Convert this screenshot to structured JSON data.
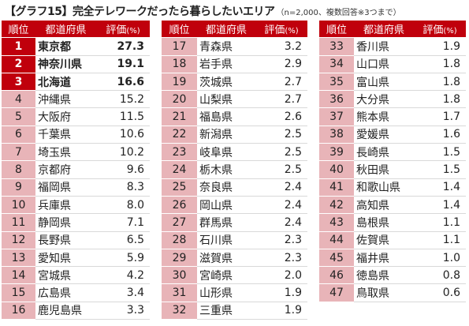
{
  "title": "【グラフ15】完全テレワークだったら暮らしたいエリア",
  "note": "（n=2,000、複数回答※3つまで）",
  "headers": {
    "rank": "順位",
    "prefecture": "都道府県",
    "score": "評価",
    "unit": "(%)"
  },
  "chart_data": {
    "type": "table",
    "title": "【グラフ15】完全テレワークだったら暮らしたいエリア",
    "subtitle": "（n=2,000、複数回答※3つまで）",
    "columns": [
      "順位",
      "都道府県",
      "評価(%)"
    ],
    "rows": [
      {
        "rank": "1",
        "pref": "東京都",
        "value": "27.3",
        "highlight": true
      },
      {
        "rank": "2",
        "pref": "神奈川県",
        "value": "19.1",
        "highlight": true
      },
      {
        "rank": "3",
        "pref": "北海道",
        "value": "16.6",
        "highlight": true
      },
      {
        "rank": "4",
        "pref": "沖縄県",
        "value": "15.2"
      },
      {
        "rank": "5",
        "pref": "大阪府",
        "value": "11.5"
      },
      {
        "rank": "6",
        "pref": "千葉県",
        "value": "10.6"
      },
      {
        "rank": "7",
        "pref": "埼玉県",
        "value": "10.2"
      },
      {
        "rank": "8",
        "pref": "京都府",
        "value": "9.6"
      },
      {
        "rank": "9",
        "pref": "福岡県",
        "value": "8.3"
      },
      {
        "rank": "10",
        "pref": "兵庫県",
        "value": "8.0"
      },
      {
        "rank": "11",
        "pref": "静岡県",
        "value": "7.1"
      },
      {
        "rank": "12",
        "pref": "長野県",
        "value": "6.5"
      },
      {
        "rank": "13",
        "pref": "愛知県",
        "value": "5.9"
      },
      {
        "rank": "14",
        "pref": "宮城県",
        "value": "4.2"
      },
      {
        "rank": "15",
        "pref": "広島県",
        "value": "3.4"
      },
      {
        "rank": "16",
        "pref": "鹿児島県",
        "value": "3.3"
      },
      {
        "rank": "17",
        "pref": "青森県",
        "value": "3.2"
      },
      {
        "rank": "18",
        "pref": "岩手県",
        "value": "2.9"
      },
      {
        "rank": "19",
        "pref": "茨城県",
        "value": "2.7"
      },
      {
        "rank": "20",
        "pref": "山梨県",
        "value": "2.7"
      },
      {
        "rank": "21",
        "pref": "福島県",
        "value": "2.6"
      },
      {
        "rank": "22",
        "pref": "新潟県",
        "value": "2.5"
      },
      {
        "rank": "23",
        "pref": "岐阜県",
        "value": "2.5"
      },
      {
        "rank": "24",
        "pref": "栃木県",
        "value": "2.5"
      },
      {
        "rank": "25",
        "pref": "奈良県",
        "value": "2.4"
      },
      {
        "rank": "26",
        "pref": "岡山県",
        "value": "2.4"
      },
      {
        "rank": "27",
        "pref": "群馬県",
        "value": "2.4"
      },
      {
        "rank": "28",
        "pref": "石川県",
        "value": "2.3"
      },
      {
        "rank": "29",
        "pref": "滋賀県",
        "value": "2.3"
      },
      {
        "rank": "30",
        "pref": "宮崎県",
        "value": "2.0"
      },
      {
        "rank": "31",
        "pref": "山形県",
        "value": "1.9"
      },
      {
        "rank": "32",
        "pref": "三重県",
        "value": "1.9"
      },
      {
        "rank": "33",
        "pref": "香川県",
        "value": "1.9"
      },
      {
        "rank": "34",
        "pref": "山口県",
        "value": "1.8"
      },
      {
        "rank": "35",
        "pref": "富山県",
        "value": "1.8"
      },
      {
        "rank": "36",
        "pref": "大分県",
        "value": "1.8"
      },
      {
        "rank": "37",
        "pref": "熊本県",
        "value": "1.7"
      },
      {
        "rank": "38",
        "pref": "愛媛県",
        "value": "1.6"
      },
      {
        "rank": "39",
        "pref": "長崎県",
        "value": "1.5"
      },
      {
        "rank": "40",
        "pref": "秋田県",
        "value": "1.5"
      },
      {
        "rank": "41",
        "pref": "和歌山県",
        "value": "1.4"
      },
      {
        "rank": "42",
        "pref": "高知県",
        "value": "1.4"
      },
      {
        "rank": "43",
        "pref": "島根県",
        "value": "1.1"
      },
      {
        "rank": "44",
        "pref": "佐賀県",
        "value": "1.1"
      },
      {
        "rank": "45",
        "pref": "福井県",
        "value": "1.0"
      },
      {
        "rank": "46",
        "pref": "徳島県",
        "value": "0.8"
      },
      {
        "rank": "47",
        "pref": "鳥取県",
        "value": "0.6"
      }
    ]
  },
  "colors": {
    "header_bg": "#c0000c",
    "rank_bg": "#e8b4b8",
    "top_bg": "#c0000c"
  }
}
